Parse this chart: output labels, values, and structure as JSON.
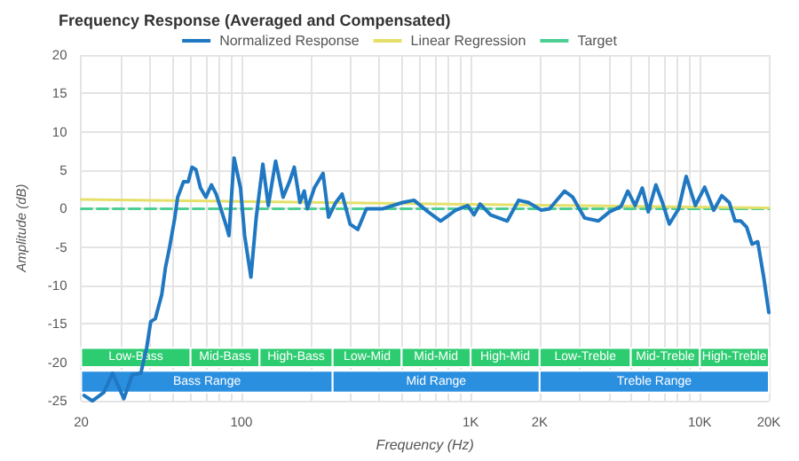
{
  "chart_data": {
    "type": "line",
    "title": "Frequency Response (Averaged and Compensated)",
    "xlabel": "Frequency (Hz)",
    "ylabel": "Amplitude (dB)",
    "log": "x",
    "grid": true,
    "legend": "top",
    "marker": "none",
    "xlim": [
      20,
      20000
    ],
    "ylim": [
      -25,
      20
    ],
    "yticks": [
      -25,
      -20,
      -15,
      -10,
      -5,
      0,
      5,
      10,
      15,
      20
    ],
    "xticks": [
      {
        "value": 20,
        "label": "20"
      },
      {
        "value": 30,
        "label": null
      },
      {
        "value": 40,
        "label": null
      },
      {
        "value": 50,
        "label": null
      },
      {
        "value": 60,
        "label": null
      },
      {
        "value": 70,
        "label": null
      },
      {
        "value": 80,
        "label": null
      },
      {
        "value": 90,
        "label": null
      },
      {
        "value": 100,
        "label": "100"
      },
      {
        "value": 200,
        "label": null
      },
      {
        "value": 300,
        "label": null
      },
      {
        "value": 400,
        "label": null
      },
      {
        "value": 500,
        "label": null
      },
      {
        "value": 600,
        "label": null
      },
      {
        "value": 700,
        "label": null
      },
      {
        "value": 800,
        "label": null
      },
      {
        "value": 900,
        "label": null
      },
      {
        "value": 1000,
        "label": "1K"
      },
      {
        "value": 2000,
        "label": "2K"
      },
      {
        "value": 3000,
        "label": null
      },
      {
        "value": 4000,
        "label": null
      },
      {
        "value": 5000,
        "label": null
      },
      {
        "value": 6000,
        "label": null
      },
      {
        "value": 7000,
        "label": null
      },
      {
        "value": 8000,
        "label": null
      },
      {
        "value": 9000,
        "label": null
      },
      {
        "value": 10000,
        "label": "10K"
      },
      {
        "value": 20000,
        "label": "20K"
      }
    ],
    "series": [
      {
        "name": "Normalized Response",
        "color": "#1f78c1",
        "x": [
          20.6,
          22.4,
          25.1,
          27.4,
          30.7,
          33.4,
          36.4,
          38.6,
          40.2,
          42.1,
          44.9,
          46.6,
          48.6,
          51.2,
          52.7,
          55.9,
          58.6,
          60.9,
          63.3,
          66.3,
          70,
          74,
          77.6,
          86.2,
          88.2,
          92.9,
          99.1,
          103.3,
          110,
          116,
          124,
          131,
          141,
          152,
          162,
          170,
          180,
          188,
          194,
          208,
          227,
          240,
          258,
          275,
          298,
          322,
          351,
          414,
          504,
          566,
          652,
          740,
          860,
          972,
          1035,
          1100,
          1222,
          1445,
          1620,
          1790,
          2035,
          2210,
          2570,
          2790,
          3140,
          3610,
          4040,
          4530,
          4850,
          5220,
          5610,
          5960,
          6430,
          6870,
          7360,
          8090,
          8720,
          9560,
          10500,
          11500,
          12470,
          13450,
          14250,
          15100,
          16000,
          16900,
          17900,
          19000,
          20000
        ],
        "values": [
          -24.3,
          -25,
          -23.9,
          -21.4,
          -24.7,
          -21.6,
          -21.4,
          -18.1,
          -14.7,
          -14.3,
          -11.2,
          -7.7,
          -5,
          -1.2,
          1.5,
          3.5,
          3.5,
          5.4,
          5.1,
          2.7,
          1.5,
          3.1,
          1.9,
          -2.4,
          -3.5,
          6.6,
          2.7,
          -3.5,
          -8.9,
          -1.2,
          5.8,
          0.4,
          6.2,
          1.5,
          3.5,
          5.4,
          0.8,
          2.3,
          0,
          2.7,
          4.6,
          -1.1,
          0.8,
          1.9,
          -2,
          -2.7,
          0,
          0,
          0.8,
          1.1,
          -0.4,
          -1.6,
          -0.2,
          0.4,
          -0.8,
          0.6,
          -0.8,
          -1.6,
          1.1,
          0.8,
          -0.2,
          0,
          2.3,
          1.5,
          -1.2,
          -1.6,
          -0.4,
          0.3,
          2.3,
          0.4,
          2.7,
          -0.4,
          3.1,
          0.8,
          -2,
          0,
          4.2,
          0.4,
          2.8,
          -0.2,
          1.7,
          0.8,
          -1.6,
          -1.6,
          -2.4,
          -4.6,
          -4.3,
          -8.9,
          -13.5
        ]
      },
      {
        "name": "Linear Regression",
        "color": "#e5e06a",
        "x": [
          20,
          20000
        ],
        "values": [
          1.2,
          0.1
        ]
      },
      {
        "name": "Target",
        "color": "#4dcf94",
        "line_style": "dashed",
        "x": [
          20,
          20000
        ],
        "values": [
          0,
          0
        ]
      }
    ],
    "bands": [
      {
        "axis": "x",
        "from": 20,
        "to": 60,
        "label": "Low-Bass",
        "color": "#2ecc71"
      },
      {
        "axis": "x",
        "from": 60,
        "to": 120,
        "label": "Mid-Bass",
        "color": "#2ecc71"
      },
      {
        "axis": "x",
        "from": 120,
        "to": 250,
        "label": "High-Bass",
        "color": "#2ecc71"
      },
      {
        "axis": "x",
        "from": 250,
        "to": 500,
        "label": "Low-Mid",
        "color": "#2ecc71"
      },
      {
        "axis": "x",
        "from": 500,
        "to": 1000,
        "label": "Mid-Mid",
        "color": "#2ecc71"
      },
      {
        "axis": "x",
        "from": 1000,
        "to": 2000,
        "label": "High-Mid",
        "color": "#2ecc71"
      },
      {
        "axis": "x",
        "from": 2000,
        "to": 5000,
        "label": "Low-Treble",
        "color": "#2ecc71"
      },
      {
        "axis": "x",
        "from": 5000,
        "to": 10000,
        "label": "Mid-Treble",
        "color": "#2ecc71"
      },
      {
        "axis": "x",
        "from": 10000,
        "to": 20000,
        "label": "High-Treble",
        "color": "#2ecc71"
      },
      {
        "axis": "x",
        "from": 20,
        "to": 250,
        "label": "Bass Range",
        "color": "#2b8fe0"
      },
      {
        "axis": "x",
        "from": 250,
        "to": 2000,
        "label": "Mid Range",
        "color": "#2b8fe0"
      },
      {
        "axis": "x",
        "from": 2000,
        "to": 20000,
        "label": "Treble Range",
        "color": "#2b8fe0"
      }
    ]
  }
}
